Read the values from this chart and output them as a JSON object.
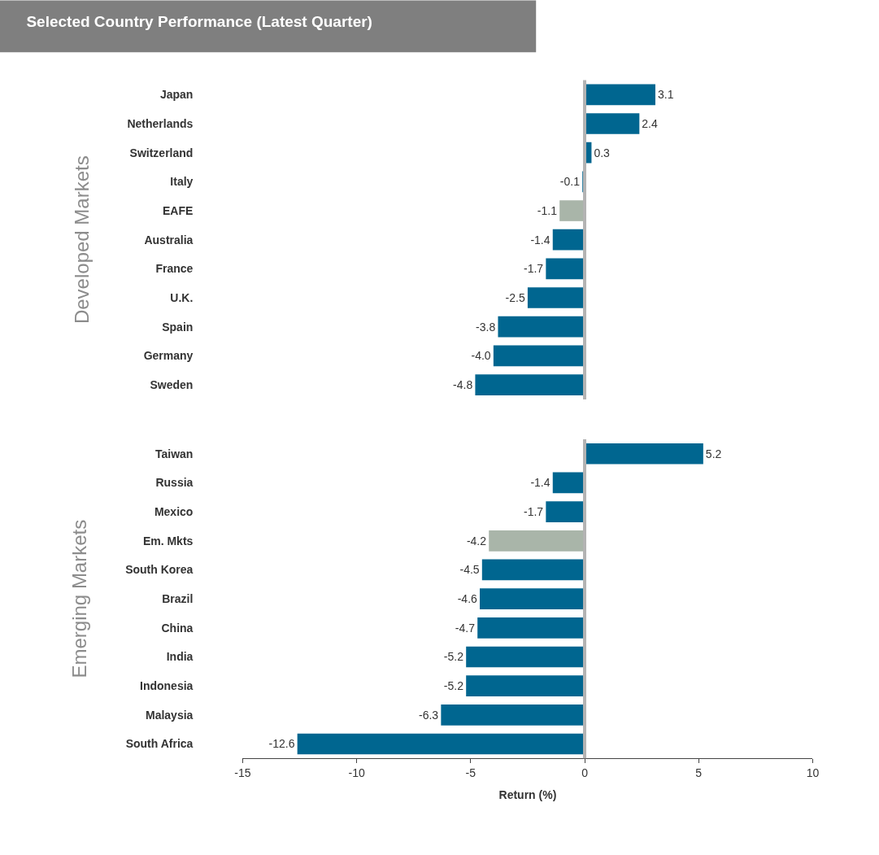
{
  "chart_data": [
    {
      "type": "bar",
      "orientation": "horizontal",
      "title": "Selected Country Performance (Latest Quarter)",
      "ylabel": "Developed Markets",
      "categories": [
        "Japan",
        "Netherlands",
        "Switzerland",
        "Italy",
        "EAFE",
        "Australia",
        "France",
        "U.K.",
        "Spain",
        "Germany",
        "Sweden"
      ],
      "values": [
        3.1,
        2.4,
        0.3,
        -0.1,
        -1.1,
        -1.4,
        -1.7,
        -2.5,
        -3.8,
        -4.0,
        -4.8
      ],
      "colors": [
        "#006690",
        "#006690",
        "#006690",
        "#006690",
        "#a9b5a9",
        "#006690",
        "#006690",
        "#006690",
        "#006690",
        "#006690",
        "#006690"
      ],
      "value_labels": [
        "3.1",
        "2.4",
        "0.3",
        "-0.1",
        "-1.1",
        "-1.4",
        "-1.7",
        "-2.5",
        "-3.8",
        "-4.0",
        "-4.8"
      ],
      "ref_lines": [
        {
          "axis": "x",
          "value": 0,
          "color": "#b3b3b3"
        }
      ],
      "xlim": [
        -15,
        10
      ],
      "xticks": [
        -15,
        -10,
        -5,
        0,
        5,
        10
      ],
      "tick_labels": "y"
    },
    {
      "type": "bar",
      "orientation": "horizontal",
      "ylabel": "Emerging Markets",
      "xlabel": "Return (%)",
      "categories": [
        "Taiwan",
        "Russia",
        "Mexico",
        "Em. Mkts",
        "South Korea",
        "Brazil",
        "China",
        "India",
        "Indonesia",
        "Malaysia",
        "South Africa"
      ],
      "values": [
        5.2,
        -1.4,
        -1.7,
        -4.2,
        -4.5,
        -4.6,
        -4.7,
        -5.2,
        -5.2,
        -6.3,
        -12.6
      ],
      "colors": [
        "#006690",
        "#006690",
        "#006690",
        "#a9b5a9",
        "#006690",
        "#006690",
        "#006690",
        "#006690",
        "#006690",
        "#006690",
        "#006690"
      ],
      "value_labels": [
        "5.2",
        "-1.4",
        "-1.7",
        "-4.2",
        "-4.5",
        "-4.6",
        "-4.7",
        "-5.2",
        "-5.2",
        "-6.3",
        "-12.6"
      ],
      "ref_lines": [
        {
          "axis": "x",
          "value": 0,
          "color": "#b3b3b3"
        }
      ],
      "xlim": [
        -15,
        10
      ],
      "xticks": [
        -15,
        -10,
        -5,
        0,
        5,
        10
      ]
    }
  ]
}
